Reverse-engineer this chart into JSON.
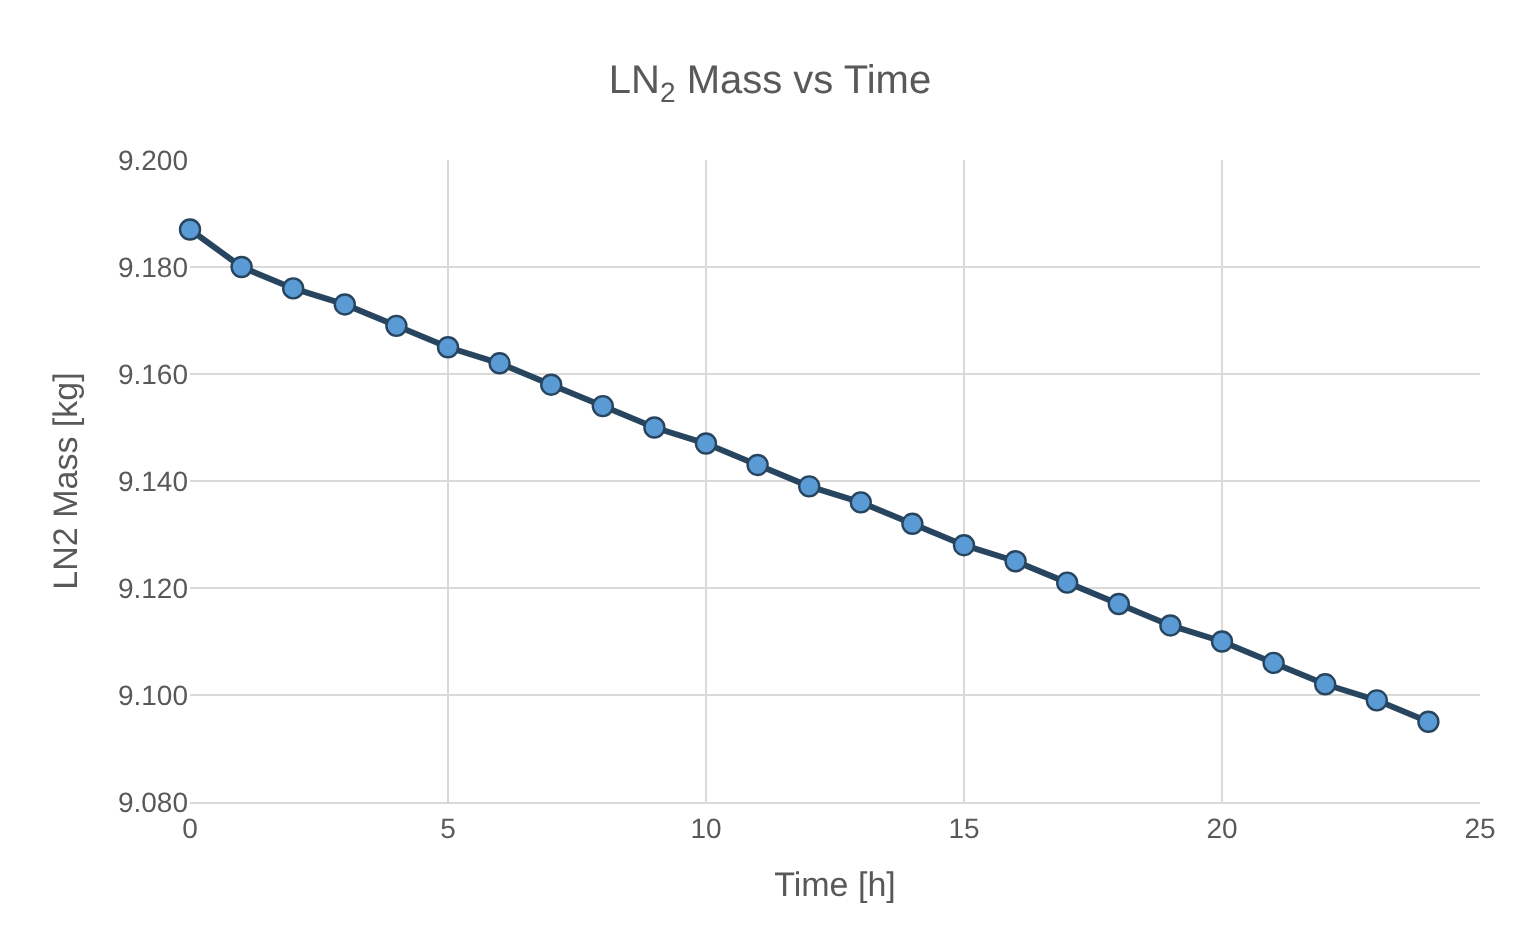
{
  "chart_data": {
    "type": "line",
    "title": "LN$_{2}$ Mass vs Time",
    "xlabel": "Time [h]",
    "ylabel": "LN2 Mass [kg]",
    "x": [
      0,
      1,
      2,
      3,
      4,
      5,
      6,
      7,
      8,
      9,
      10,
      11,
      12,
      13,
      14,
      15,
      16,
      17,
      18,
      19,
      20,
      21,
      22,
      23,
      24
    ],
    "series": [
      {
        "color": "#5b9bd5",
        "values": [
          9.187,
          9.18,
          9.176,
          9.173,
          9.169,
          9.165,
          9.162,
          9.158,
          9.154,
          9.15,
          9.147,
          9.143,
          9.139,
          9.136,
          9.132,
          9.128,
          9.125,
          9.121,
          9.117,
          9.113,
          9.11,
          9.106,
          9.102,
          9.099,
          9.095
        ]
      }
    ],
    "xlim": [
      0,
      25
    ],
    "xticks": [
      0,
      5,
      10,
      15,
      20,
      25
    ],
    "ylim": [
      9.08,
      9.2
    ],
    "yticks": [
      {
        "value": 9.08,
        "label": "9.080"
      },
      {
        "value": 9.1,
        "label": "9.100"
      },
      {
        "value": 9.12,
        "label": "9.120"
      },
      {
        "value": 9.14,
        "label": "9.140"
      },
      {
        "value": 9.16,
        "label": "9.160"
      },
      {
        "value": 9.18,
        "label": "9.180"
      },
      {
        "value": 9.2,
        "label": "9.200"
      }
    ],
    "grid": true,
    "marker": "circle",
    "line_style": "solid"
  }
}
